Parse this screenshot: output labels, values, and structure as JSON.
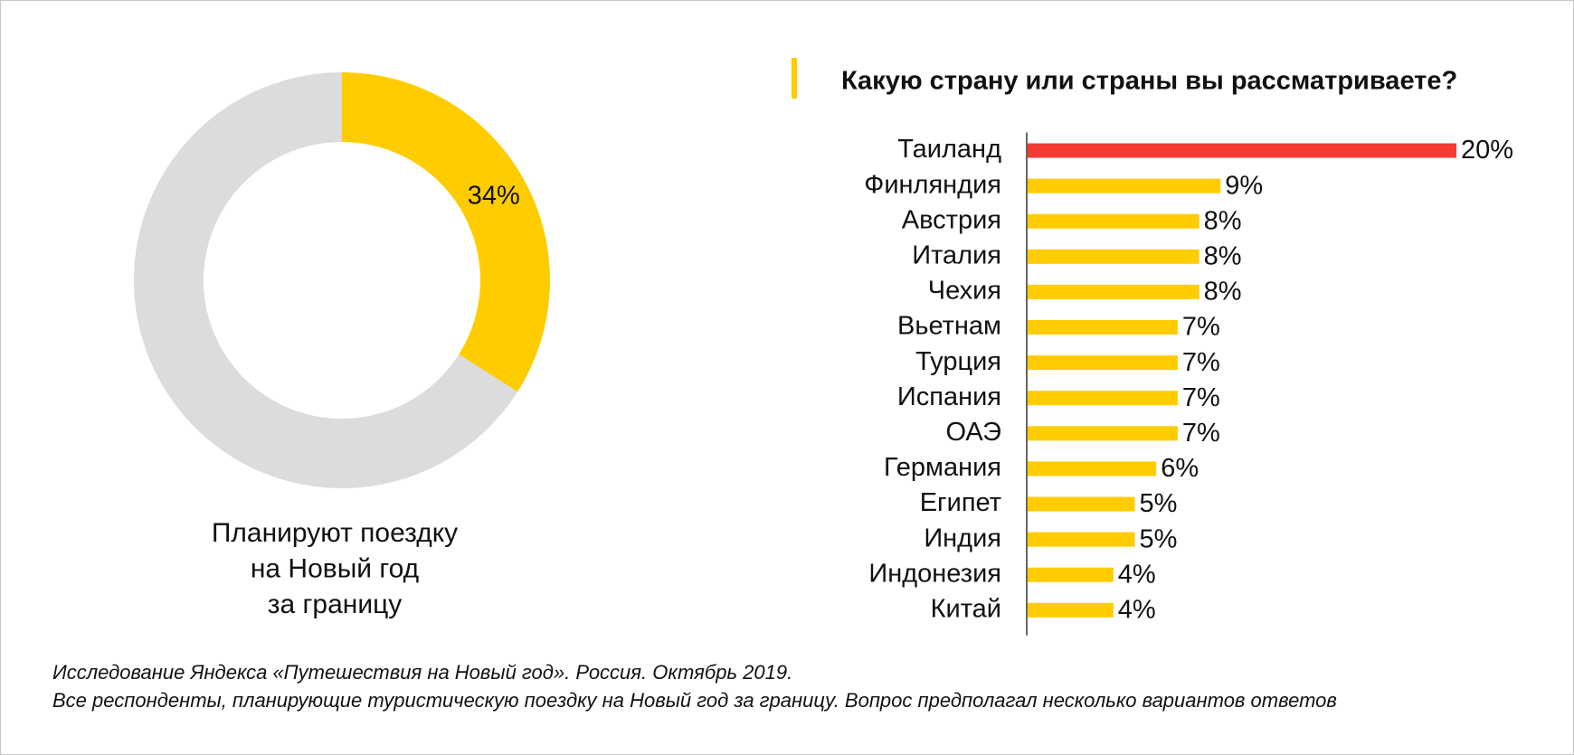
{
  "chart_data": [
    {
      "type": "pie",
      "donut": true,
      "values": [
        34,
        66
      ],
      "value_labels": [
        "34%",
        null
      ],
      "colors": [
        "#ffcc00",
        "#dcdcdc"
      ],
      "caption": [
        "Планируют поездку",
        "на Новый год",
        "за границу"
      ]
    },
    {
      "type": "barh",
      "title": "Какую страну или страны вы рассматриваете?",
      "categories": [
        "Таиланд",
        "Финляндия",
        "Австрия",
        "Италия",
        "Чехия",
        "Вьетнам",
        "Турция",
        "Испания",
        "ОАЭ",
        "Германия",
        "Египет",
        "Индия",
        "Индонезия",
        "Китай"
      ],
      "values": [
        20,
        9,
        8,
        8,
        8,
        7,
        7,
        7,
        7,
        6,
        5,
        5,
        4,
        4
      ],
      "value_labels": [
        "20%",
        "9%",
        "8%",
        "8%",
        "8%",
        "7%",
        "7%",
        "7%",
        "7%",
        "6%",
        "5%",
        "5%",
        "4%",
        "4%"
      ],
      "colors": [
        "#f33a33",
        "#ffcc00",
        "#ffcc00",
        "#ffcc00",
        "#ffcc00",
        "#ffcc00",
        "#ffcc00",
        "#ffcc00",
        "#ffcc00",
        "#ffcc00",
        "#ffcc00",
        "#ffcc00",
        "#ffcc00",
        "#ffcc00"
      ],
      "xlim": [
        0,
        20
      ],
      "footnote": [
        "Исследование Яндекса «Путешествия на Новый год». Россия. Октябрь 2019.",
        "Все респонденты, планирующие туристическую поездку на Новый год за границу. Вопрос предполагал несколько вариантов ответов"
      ]
    }
  ]
}
